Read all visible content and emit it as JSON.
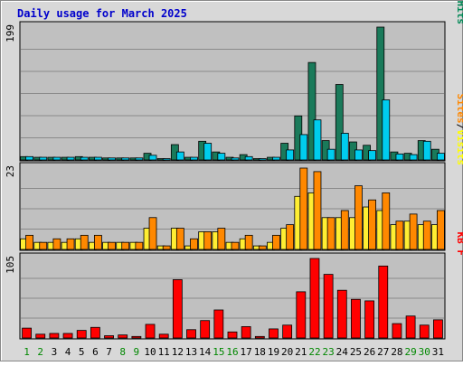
{
  "chart_data": {
    "type": "bar",
    "title": "Daily usage for March 2025",
    "days": [
      "1",
      "2",
      "3",
      "4",
      "5",
      "6",
      "7",
      "8",
      "9",
      "10",
      "11",
      "12",
      "13",
      "14",
      "15",
      "16",
      "17",
      "18",
      "19",
      "20",
      "21",
      "22",
      "23",
      "24",
      "25",
      "26",
      "27",
      "28",
      "29",
      "30",
      "31"
    ],
    "weekend_days": [
      1,
      2,
      8,
      9,
      15,
      16,
      22,
      23,
      29,
      30
    ],
    "colors": {
      "title": "#0000cc",
      "pages": "#00ccff",
      "files": "#0000ff",
      "hits": "#008855",
      "sites": "#ff8800",
      "visits": "#ffff00",
      "kbytes": "#ff0000",
      "weekday_label": "#000000",
      "weekend_label": "#008800",
      "panel_bg": "#c0c0c0",
      "frame": "#d8d8d8"
    },
    "panels": [
      {
        "id": "hits-files-pages",
        "ymax_label": "199",
        "ylim": [
          0,
          199
        ],
        "legend": [
          {
            "text": "Pages",
            "color": "#00ccff"
          },
          {
            "text": "/",
            "color": "#000000"
          },
          {
            "text": "Files",
            "color": "#0000ff"
          },
          {
            "text": "/",
            "color": "#000000"
          },
          {
            "text": "Hits",
            "color": "#008855"
          }
        ],
        "series": [
          {
            "name": "Hits",
            "color": "#1a7a5a",
            "values": [
              5,
              4,
              4,
              4,
              5,
              4,
              3,
              3,
              3,
              10,
              2,
              23,
              4,
              28,
              12,
              4,
              8,
              2,
              4,
              25,
              66,
              146,
              29,
              113,
              27,
              22,
              199,
              12,
              10,
              29,
              16
            ]
          },
          {
            "name": "Pages",
            "color": "#00ccee",
            "values": [
              5,
              4,
              4,
              4,
              4,
              4,
              3,
              3,
              3,
              7,
              2,
              12,
              4,
              25,
              10,
              3,
              5,
              2,
              4,
              15,
              38,
              60,
              16,
              40,
              15,
              14,
              90,
              9,
              8,
              28,
              10
            ]
          }
        ]
      },
      {
        "id": "visits-sites",
        "ymax_label": "23",
        "ylim": [
          0,
          23
        ],
        "legend": [
          {
            "text": "Sites",
            "color": "#ff8800"
          },
          {
            "text": "/",
            "color": "#000000"
          },
          {
            "text": "Visits",
            "color": "#ffff00"
          }
        ],
        "series": [
          {
            "name": "Visits",
            "color": "#ffee33",
            "values": [
              3,
              2,
              2,
              2,
              3,
              2,
              2,
              2,
              2,
              6,
              1,
              6,
              1,
              5,
              5,
              2,
              3,
              1,
              2,
              6,
              15,
              16,
              9,
              9,
              9,
              12,
              11,
              7,
              8,
              7,
              7
            ]
          },
          {
            "name": "Sites",
            "color": "#ff8800",
            "values": [
              4,
              2,
              3,
              3,
              4,
              4,
              2,
              2,
              2,
              9,
              1,
              6,
              3,
              5,
              6,
              2,
              4,
              1,
              4,
              7,
              23,
              22,
              9,
              11,
              18,
              14,
              16,
              8,
              10,
              8,
              11
            ]
          }
        ]
      },
      {
        "id": "kbytes",
        "ymax_label": "105",
        "ylim": [
          0,
          105
        ],
        "legend": [
          {
            "text": "KB F",
            "color": "#ff0000"
          }
        ],
        "series": [
          {
            "name": "KB F",
            "color": "#ff0000",
            "values": [
              13,
              5,
              6,
              6,
              10,
              14,
              3,
              4,
              2,
              18,
              5,
              77,
              11,
              23,
              37,
              8,
              15,
              2,
              12,
              17,
              61,
              105,
              84,
              63,
              51,
              49,
              95,
              19,
              29,
              17,
              24
            ]
          }
        ]
      }
    ]
  }
}
